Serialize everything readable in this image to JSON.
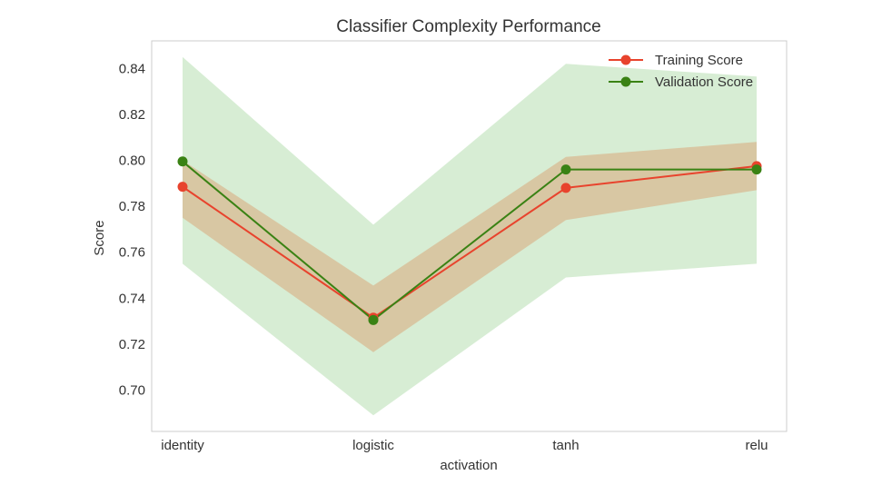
{
  "chart_data": {
    "type": "line",
    "title": "Classifier Complexity Performance",
    "xlabel": "activation",
    "ylabel": "Score",
    "categories": [
      "identity",
      "logistic",
      "tanh",
      "relu"
    ],
    "ylim": [
      0.682,
      0.852
    ],
    "yticks": [
      "0.70",
      "0.72",
      "0.74",
      "0.76",
      "0.78",
      "0.80",
      "0.82",
      "0.84"
    ],
    "grid": false,
    "legend_position": "top-right",
    "series": [
      {
        "name": "Training Score",
        "color": "#e8432d",
        "band_color": "#d9a87a",
        "values": [
          0.7885,
          0.7315,
          0.788,
          0.7975
        ],
        "lower": [
          0.775,
          0.7165,
          0.774,
          0.787
        ],
        "upper": [
          0.8,
          0.7455,
          0.8015,
          0.808
        ]
      },
      {
        "name": "Validation Score",
        "color": "#3a8214",
        "band_color": "#a6d8a0",
        "values": [
          0.7995,
          0.7305,
          0.796,
          0.796
        ],
        "lower": [
          0.755,
          0.689,
          0.749,
          0.755
        ],
        "upper": [
          0.845,
          0.772,
          0.842,
          0.8365
        ]
      }
    ]
  }
}
